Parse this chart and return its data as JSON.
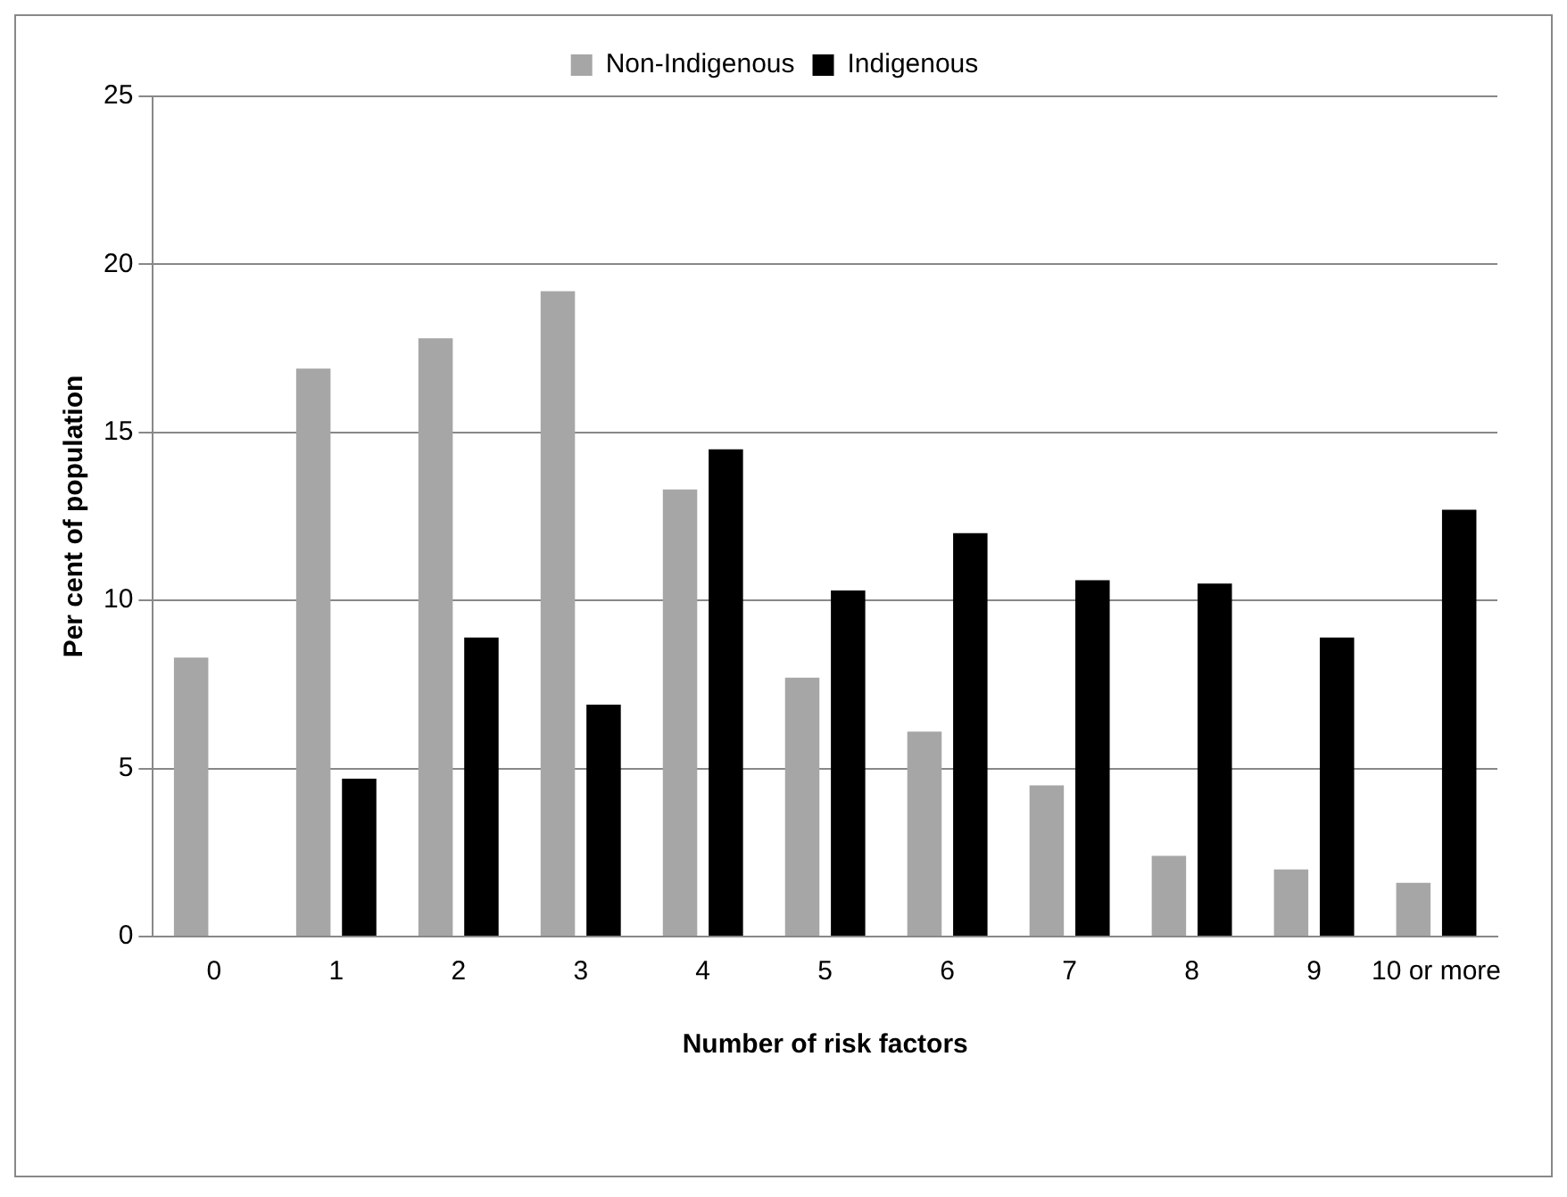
{
  "chart_data": {
    "type": "bar",
    "xlabel": "Number of risk factors",
    "ylabel": "Per cent of population",
    "categories": [
      "0",
      "1",
      "2",
      "3",
      "4",
      "5",
      "6",
      "7",
      "8",
      "9",
      "10 or more"
    ],
    "series": [
      {
        "name": "Non-Indigenous",
        "color": "#a6a6a6",
        "values": [
          8.3,
          16.9,
          17.8,
          19.2,
          13.3,
          7.7,
          6.1,
          4.5,
          2.4,
          2.0,
          1.6
        ]
      },
      {
        "name": "Indigenous",
        "color": "#000000",
        "values": [
          null,
          4.7,
          8.9,
          6.9,
          14.5,
          10.3,
          12.0,
          10.6,
          10.5,
          8.9,
          12.7
        ]
      }
    ],
    "ylim": [
      0,
      25
    ],
    "yticks": [
      0,
      5,
      10,
      15,
      20,
      25
    ],
    "grid": "y",
    "legend": "top"
  }
}
